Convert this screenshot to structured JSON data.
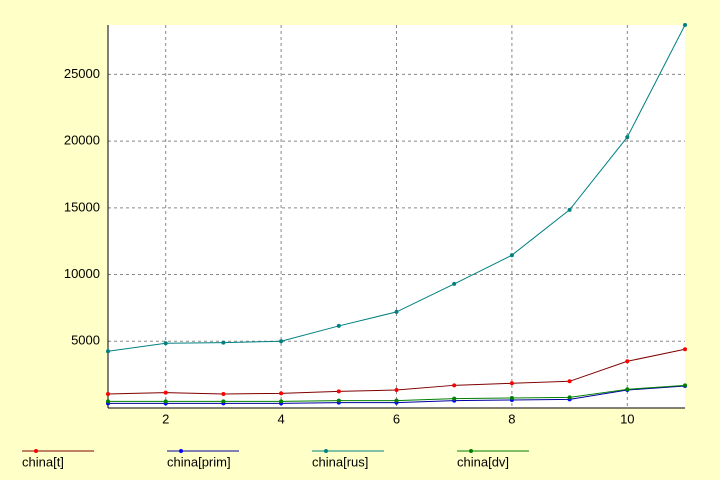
{
  "chart_data": {
    "type": "line",
    "x": [
      1,
      2,
      3,
      4,
      5,
      6,
      7,
      8,
      9,
      10,
      11
    ],
    "xlim": [
      1,
      11
    ],
    "xticks": [
      2,
      4,
      6,
      8,
      10
    ],
    "ylim": [
      0,
      28700
    ],
    "yticks": [
      5000,
      10000,
      15000,
      20000,
      25000
    ],
    "grid": true,
    "legend": "bottom",
    "series": [
      {
        "name": "china[t]",
        "color": "#800000",
        "marker_color": "#ff0000",
        "values": [
          1050,
          1150,
          1050,
          1100,
          1250,
          1350,
          1700,
          1850,
          2000,
          3500,
          4400
        ]
      },
      {
        "name": "china[prim]",
        "color": "#0000a0",
        "marker_color": "#0000ff",
        "values": [
          350,
          350,
          350,
          350,
          400,
          400,
          550,
          600,
          650,
          1350,
          1650
        ]
      },
      {
        "name": "china[rus]",
        "color": "#008080",
        "marker_color": "#008080",
        "values": [
          4250,
          4850,
          4900,
          5000,
          6150,
          7200,
          9300,
          11450,
          14850,
          20300,
          28700
        ]
      },
      {
        "name": "china[dv]",
        "color": "#008000",
        "marker_color": "#008000",
        "values": [
          500,
          500,
          500,
          500,
          550,
          550,
          700,
          750,
          800,
          1400,
          1700
        ]
      }
    ]
  }
}
